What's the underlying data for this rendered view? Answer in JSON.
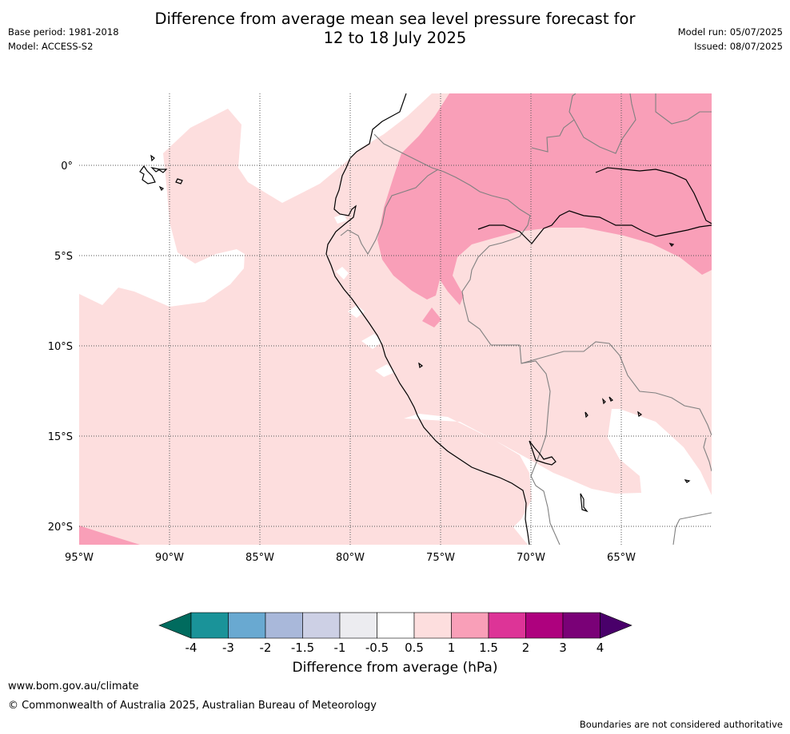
{
  "header": {
    "title_line1": "Difference from average mean sea level pressure forecast for",
    "title_line2": "12 to 18 July 2025",
    "base_period": "Base period: 1981-2018",
    "model": "Model: ACCESS-S2",
    "model_run": "Model run: 05/07/2025",
    "issued": "Issued: 08/07/2025"
  },
  "map": {
    "lon_labels": [
      "95°W",
      "90°W",
      "85°W",
      "80°W",
      "75°W",
      "70°W",
      "65°W"
    ],
    "lat_labels": [
      "0°",
      "5°S",
      "10°S",
      "15°S",
      "20°S"
    ],
    "lon_range": [
      -95,
      -60
    ],
    "lat_range": [
      -21,
      4
    ],
    "colors": {
      "band_0.5_1": "#fddede",
      "band_1_1.5": "#f99fb8",
      "coast": "#000000",
      "border": "#808080",
      "grid": "#555555"
    }
  },
  "colorbar": {
    "tick_labels": [
      "-4",
      "-3",
      "-2",
      "-1.5",
      "-1",
      "-0.5",
      "0.5",
      "1",
      "1.5",
      "2",
      "3",
      "4"
    ],
    "colors": [
      "#006b5e",
      "#1a9399",
      "#69a9d1",
      "#a9b8da",
      "#cdd0e5",
      "#ececf0",
      "#ffffff",
      "#fddede",
      "#f99fb8",
      "#dd3497",
      "#ae017e",
      "#7a0177",
      "#49006a"
    ],
    "title": "Difference from average (hPa)"
  },
  "footer": {
    "url": "www.bom.gov.au/climate",
    "copyright": "© Commonwealth of Australia 2025, Australian Bureau of Meteorology",
    "note": "Boundaries are not considered authoritative"
  }
}
